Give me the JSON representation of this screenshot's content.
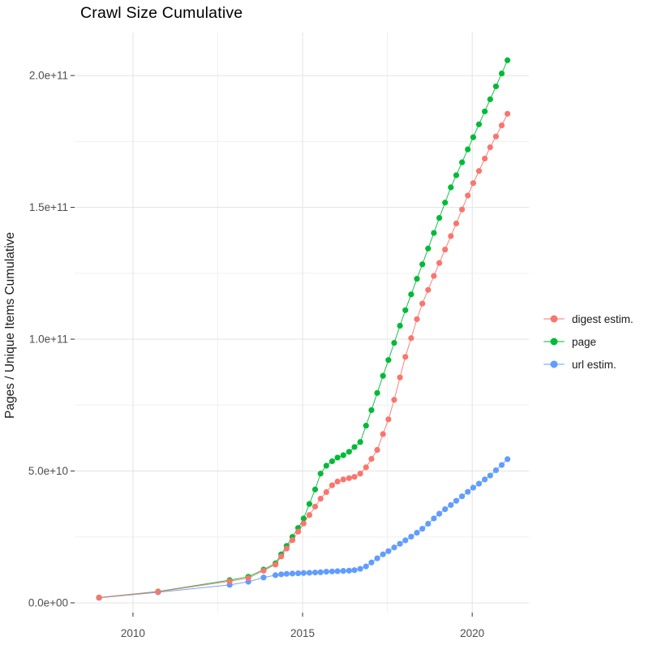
{
  "chart_data": {
    "type": "scatter",
    "title": "Crawl Size Cumulative",
    "xlabel": "",
    "ylabel": "Pages / Unique Items Cumulative",
    "grid": true,
    "legend_position": "right",
    "value_unit": 1000000000,
    "xlim": [
      2008.28,
      2021.67
    ],
    "ylim_billions": [
      -3.7,
      216.35
    ],
    "x_ticks": [
      {
        "value": 2010,
        "label": "2010"
      },
      {
        "value": 2015,
        "label": "2015"
      },
      {
        "value": 2020,
        "label": "2020"
      }
    ],
    "y_ticks": [
      {
        "value": 0,
        "label": "0.0e+00"
      },
      {
        "value": 50,
        "label": "5.0e+10"
      },
      {
        "value": 100,
        "label": "1.0e+11"
      },
      {
        "value": 150,
        "label": "1.5e+11"
      },
      {
        "value": 200,
        "label": "2.0e+11"
      }
    ],
    "x_minor_ticks": [
      2012.5,
      2017.5
    ],
    "y_minor_ticks_billions": [
      25,
      75,
      125,
      175
    ],
    "colors": {
      "digest": "#F8766D",
      "page": "#00BA38",
      "url": "#619CFF",
      "grid_major": "#E3E3E3",
      "grid_minor": "#F0F0F0",
      "tick_mark": "#333333",
      "tick_label": "#4D4D4D"
    },
    "draw_order": [
      2,
      1,
      0
    ],
    "series": [
      {
        "name": "digest estim.",
        "color": "#F8766D",
        "points_year_billion": [
          [
            2009.0,
            2.0
          ],
          [
            2010.74,
            4.2
          ],
          [
            2012.85,
            8.2
          ],
          [
            2013.4,
            9.4
          ],
          [
            2013.85,
            12.2
          ],
          [
            2014.2,
            14.5
          ],
          [
            2014.37,
            17.6
          ],
          [
            2014.53,
            20.6
          ],
          [
            2014.7,
            23.8
          ],
          [
            2014.87,
            27.0
          ],
          [
            2015.03,
            30.1
          ],
          [
            2015.2,
            33.3
          ],
          [
            2015.37,
            36.5
          ],
          [
            2015.53,
            39.5
          ],
          [
            2015.7,
            42.0
          ],
          [
            2015.87,
            44.6
          ],
          [
            2016.03,
            46.0
          ],
          [
            2016.2,
            46.8
          ],
          [
            2016.37,
            47.3
          ],
          [
            2016.53,
            47.8
          ],
          [
            2016.7,
            49.0
          ],
          [
            2016.87,
            51.4
          ],
          [
            2017.03,
            54.6
          ],
          [
            2017.2,
            58.0
          ],
          [
            2017.37,
            64.0
          ],
          [
            2017.53,
            69.6
          ],
          [
            2017.7,
            77.0
          ],
          [
            2017.87,
            85.5
          ],
          [
            2018.03,
            93.3
          ],
          [
            2018.2,
            100.4
          ],
          [
            2018.37,
            107.6
          ],
          [
            2018.53,
            113.5
          ],
          [
            2018.7,
            118.7
          ],
          [
            2018.87,
            124.0
          ],
          [
            2019.03,
            128.9
          ],
          [
            2019.2,
            134.0
          ],
          [
            2019.37,
            139.1
          ],
          [
            2019.53,
            143.9
          ],
          [
            2019.7,
            149.2
          ],
          [
            2019.87,
            154.5
          ],
          [
            2020.03,
            159.2
          ],
          [
            2020.2,
            163.8
          ],
          [
            2020.37,
            168.5
          ],
          [
            2020.53,
            172.8
          ],
          [
            2020.7,
            176.9
          ],
          [
            2020.87,
            181.1
          ],
          [
            2021.04,
            185.5
          ]
        ]
      },
      {
        "name": "page",
        "color": "#00BA38",
        "points_year_billion": [
          [
            2009.0,
            2.0
          ],
          [
            2010.74,
            4.3
          ],
          [
            2012.85,
            8.6
          ],
          [
            2013.4,
            9.9
          ],
          [
            2013.85,
            12.6
          ],
          [
            2014.2,
            15.0
          ],
          [
            2014.37,
            18.4
          ],
          [
            2014.53,
            21.6
          ],
          [
            2014.7,
            25.0
          ],
          [
            2014.87,
            28.4
          ],
          [
            2015.03,
            32.0
          ],
          [
            2015.2,
            37.5
          ],
          [
            2015.37,
            43.0
          ],
          [
            2015.53,
            49.0
          ],
          [
            2015.7,
            52.0
          ],
          [
            2015.87,
            53.7
          ],
          [
            2016.03,
            55.1
          ],
          [
            2016.2,
            56.0
          ],
          [
            2016.37,
            57.3
          ],
          [
            2016.53,
            59.1
          ],
          [
            2016.7,
            61.0
          ],
          [
            2016.87,
            67.2
          ],
          [
            2017.03,
            73.1
          ],
          [
            2017.2,
            79.6
          ],
          [
            2017.37,
            86.1
          ],
          [
            2017.53,
            92.1
          ],
          [
            2017.7,
            98.6
          ],
          [
            2017.87,
            105.1
          ],
          [
            2018.03,
            111.0
          ],
          [
            2018.2,
            117.0
          ],
          [
            2018.37,
            122.9
          ],
          [
            2018.53,
            128.4
          ],
          [
            2018.7,
            134.4
          ],
          [
            2018.87,
            140.3
          ],
          [
            2019.03,
            146.0
          ],
          [
            2019.2,
            151.8
          ],
          [
            2019.37,
            157.6
          ],
          [
            2019.53,
            162.2
          ],
          [
            2019.7,
            167.1
          ],
          [
            2019.87,
            172.0
          ],
          [
            2020.03,
            176.6
          ],
          [
            2020.2,
            181.5
          ],
          [
            2020.37,
            186.4
          ],
          [
            2020.53,
            191.0
          ],
          [
            2020.7,
            195.9
          ],
          [
            2020.87,
            200.8
          ],
          [
            2021.04,
            205.8
          ]
        ]
      },
      {
        "name": "url estim.",
        "color": "#619CFF",
        "points_year_billion": [
          [
            2009.0,
            1.9
          ],
          [
            2010.74,
            4.0
          ],
          [
            2012.85,
            6.8
          ],
          [
            2013.4,
            8.0
          ],
          [
            2013.85,
            9.6
          ],
          [
            2014.2,
            10.5
          ],
          [
            2014.37,
            10.8
          ],
          [
            2014.53,
            11.0
          ],
          [
            2014.7,
            11.1
          ],
          [
            2014.87,
            11.2
          ],
          [
            2015.03,
            11.3
          ],
          [
            2015.2,
            11.4
          ],
          [
            2015.37,
            11.5
          ],
          [
            2015.53,
            11.6
          ],
          [
            2015.7,
            11.8
          ],
          [
            2015.87,
            11.9
          ],
          [
            2016.03,
            12.0
          ],
          [
            2016.2,
            12.1
          ],
          [
            2016.37,
            12.2
          ],
          [
            2016.53,
            12.4
          ],
          [
            2016.7,
            12.9
          ],
          [
            2016.87,
            13.8
          ],
          [
            2017.03,
            15.3
          ],
          [
            2017.2,
            16.9
          ],
          [
            2017.37,
            18.4
          ],
          [
            2017.53,
            19.6
          ],
          [
            2017.7,
            21.0
          ],
          [
            2017.87,
            22.4
          ],
          [
            2018.03,
            23.7
          ],
          [
            2018.2,
            25.1
          ],
          [
            2018.37,
            26.6
          ],
          [
            2018.53,
            28.1
          ],
          [
            2018.7,
            30.0
          ],
          [
            2018.87,
            32.0
          ],
          [
            2019.03,
            33.8
          ],
          [
            2019.2,
            35.5
          ],
          [
            2019.37,
            37.1
          ],
          [
            2019.53,
            38.7
          ],
          [
            2019.7,
            40.4
          ],
          [
            2019.87,
            42.1
          ],
          [
            2020.03,
            43.7
          ],
          [
            2020.2,
            45.2
          ],
          [
            2020.37,
            46.8
          ],
          [
            2020.53,
            48.3
          ],
          [
            2020.7,
            50.3
          ],
          [
            2020.87,
            52.3
          ],
          [
            2021.04,
            54.5
          ]
        ]
      }
    ]
  }
}
